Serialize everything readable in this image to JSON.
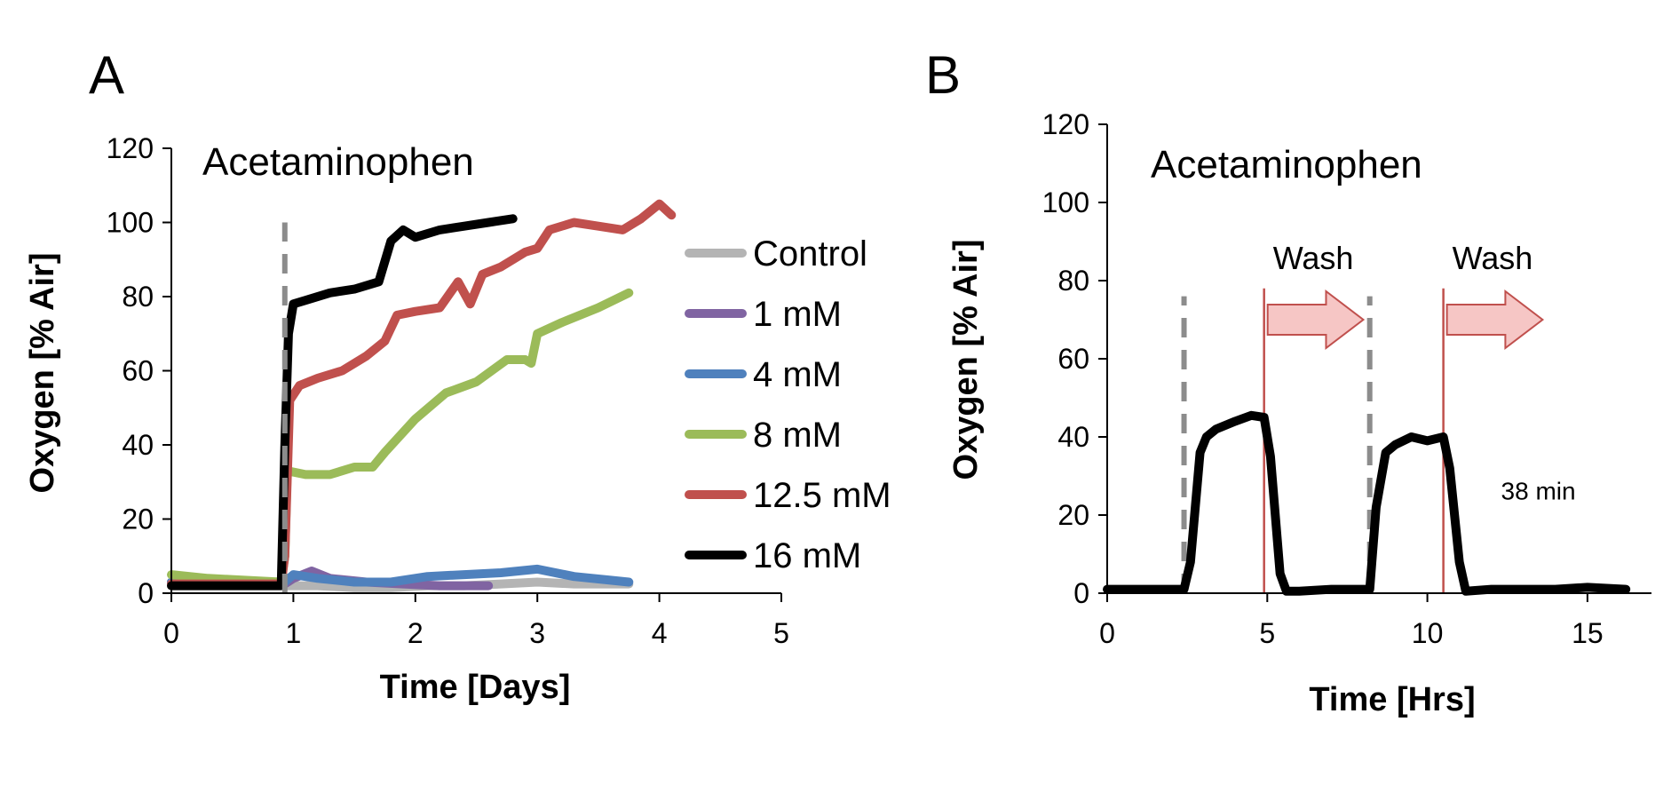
{
  "chart_data": [
    {
      "panel": "A",
      "type": "line",
      "title": "Acetaminophen",
      "xlabel": "Time [Days]",
      "ylabel": "Oxygen [% Air]",
      "xlim": [
        0,
        5
      ],
      "ylim": [
        0,
        120
      ],
      "xticks": [
        "0",
        "1",
        "2",
        "3",
        "4",
        "5"
      ],
      "yticks": [
        "0",
        "20",
        "40",
        "60",
        "80",
        "100",
        "120"
      ],
      "grid": false,
      "legend_position": "right",
      "markers": [
        {
          "type": "dashed-vertical",
          "x": 0.93,
          "color": "#8c8c8c"
        }
      ],
      "series": [
        {
          "name": "Control",
          "color": "#b4b4b4",
          "x": [
            0,
            0.3,
            0.6,
            0.93,
            1.2,
            1.5,
            1.8,
            2.1,
            2.4,
            2.7,
            3.0,
            3.3,
            3.6,
            3.75
          ],
          "y": [
            3,
            2.5,
            2.5,
            2,
            2,
            1.5,
            1.5,
            2,
            2,
            2.5,
            3,
            2.5,
            2.5,
            2.5
          ]
        },
        {
          "name": "1 mM",
          "color": "#8064a2",
          "x": [
            0,
            0.3,
            0.6,
            0.93,
            1.0,
            1.15,
            1.3,
            1.6,
            1.9,
            2.2,
            2.6
          ],
          "y": [
            3,
            2.5,
            2.5,
            2.5,
            4,
            6,
            4,
            3,
            2.5,
            2,
            2
          ]
        },
        {
          "name": "4 mM",
          "color": "#4f81bd",
          "x": [
            0,
            0.3,
            0.6,
            0.93,
            1.0,
            1.2,
            1.5,
            1.8,
            2.1,
            2.4,
            2.7,
            3.0,
            3.3,
            3.6,
            3.75
          ],
          "y": [
            3,
            3,
            3,
            3,
            5,
            4,
            3,
            3,
            4.5,
            5,
            5.5,
            6.5,
            4.5,
            3.5,
            3
          ]
        },
        {
          "name": "8 mM",
          "color": "#9bbb59",
          "x": [
            0,
            0.3,
            0.6,
            0.9,
            0.93,
            0.95,
            1.1,
            1.3,
            1.5,
            1.65,
            1.75,
            2.0,
            2.25,
            2.5,
            2.75,
            2.9,
            2.95,
            3.0,
            3.2,
            3.5,
            3.75
          ],
          "y": [
            5,
            4,
            3.5,
            3,
            10,
            33,
            32,
            32,
            34,
            34,
            38,
            47,
            54,
            57,
            63,
            63,
            62,
            70,
            73,
            77,
            81
          ]
        },
        {
          "name": "12.5 mM",
          "color": "#c0504d",
          "x": [
            0,
            0.3,
            0.6,
            0.9,
            0.93,
            0.97,
            1.05,
            1.2,
            1.4,
            1.6,
            1.75,
            1.85,
            2.0,
            2.2,
            2.35,
            2.45,
            2.55,
            2.7,
            2.9,
            3.0,
            3.1,
            3.3,
            3.5,
            3.7,
            3.85,
            4.0,
            4.1
          ],
          "y": [
            2.5,
            2.5,
            2.5,
            2.5,
            10,
            52,
            56,
            58,
            60,
            64,
            68,
            75,
            76,
            77,
            84,
            78,
            86,
            88,
            92,
            93,
            98,
            100,
            99,
            98,
            101,
            105,
            102
          ]
        },
        {
          "name": "16 mM",
          "color": "#000000",
          "x": [
            0,
            0.3,
            0.6,
            0.9,
            0.93,
            0.96,
            1.0,
            1.1,
            1.3,
            1.5,
            1.7,
            1.8,
            1.9,
            2.0,
            2.2,
            2.4,
            2.6,
            2.8
          ],
          "y": [
            2,
            2,
            2,
            2,
            40,
            70,
            78,
            79,
            81,
            82,
            84,
            95,
            98,
            96,
            98,
            99,
            100,
            101
          ]
        }
      ]
    },
    {
      "panel": "B",
      "type": "line",
      "title": "Acetaminophen",
      "xlabel": "Time [Hrs]",
      "ylabel": "Oxygen [% Air]",
      "xlim": [
        0,
        17
      ],
      "ylim": [
        0,
        120
      ],
      "xticks": [
        "0",
        "5",
        "10",
        "15"
      ],
      "yticks": [
        "0",
        "20",
        "40",
        "60",
        "80",
        "100",
        "120"
      ],
      "grid": false,
      "markers": [
        {
          "type": "dashed-vertical",
          "x": 2.4,
          "color": "#8c8c8c"
        },
        {
          "type": "dashed-vertical",
          "x": 8.2,
          "color": "#8c8c8c"
        },
        {
          "type": "solid-vertical",
          "x": 4.9,
          "color": "#c0504d"
        },
        {
          "type": "solid-vertical",
          "x": 10.5,
          "color": "#c0504d"
        }
      ],
      "annotations": [
        {
          "text": "Wash",
          "x": 4.9,
          "arrow_to": 8.0
        },
        {
          "text": "Wash",
          "x": 10.5,
          "arrow_to": 13.6
        },
        {
          "text": "38 min",
          "x": 12.3,
          "y": 24
        }
      ],
      "series": [
        {
          "name": "",
          "color": "#000000",
          "x": [
            0,
            1.0,
            2.0,
            2.4,
            2.6,
            2.9,
            3.1,
            3.4,
            4.0,
            4.5,
            4.9,
            5.1,
            5.4,
            5.6,
            6.0,
            7.0,
            8.0,
            8.2,
            8.4,
            8.7,
            9.0,
            9.5,
            10.0,
            10.5,
            10.7,
            11.0,
            11.2,
            12.0,
            14.0,
            15.0,
            16.2
          ],
          "y": [
            1,
            1,
            1,
            1,
            8,
            36,
            40,
            42,
            44,
            45.5,
            45,
            35,
            5,
            0.5,
            0.5,
            1,
            1,
            1,
            22,
            36,
            38,
            40,
            39,
            40,
            32,
            8,
            0.5,
            1,
            1,
            1.5,
            1
          ]
        }
      ]
    }
  ]
}
